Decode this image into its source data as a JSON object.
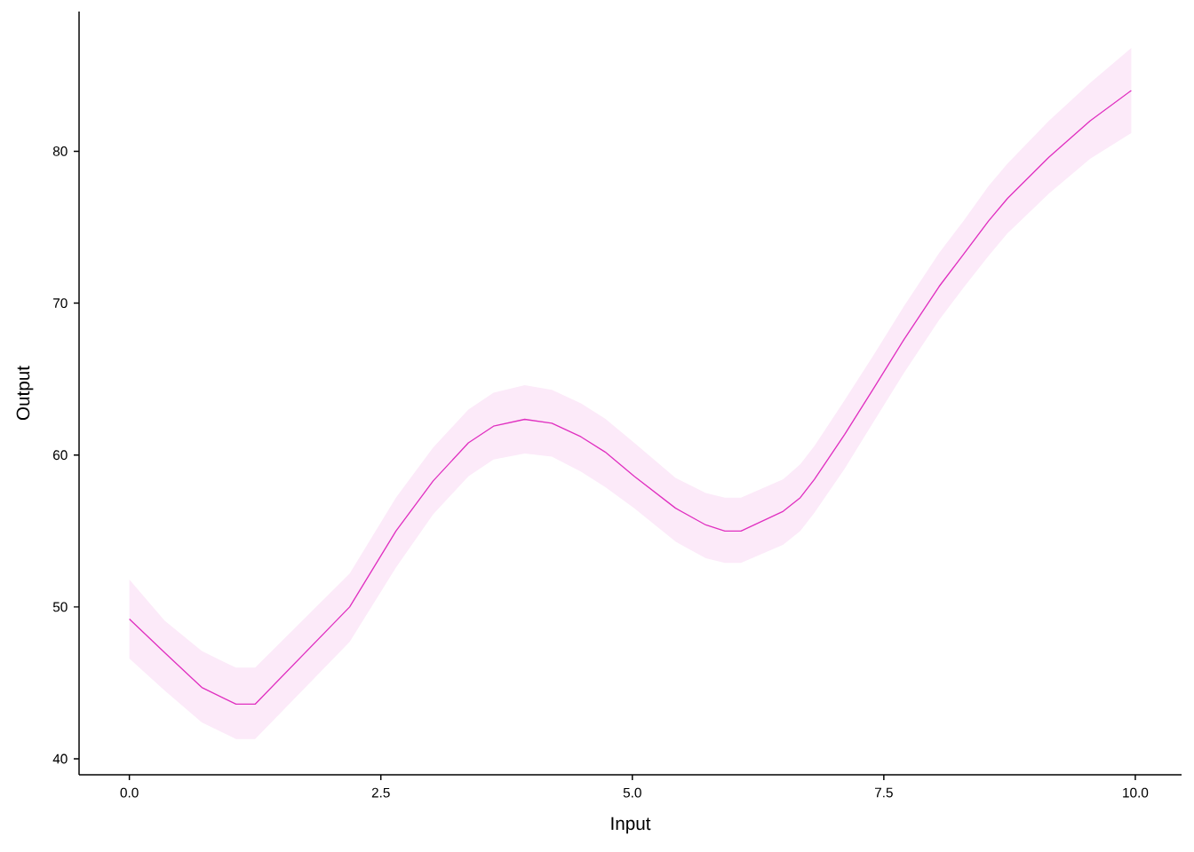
{
  "chart_data": {
    "type": "line",
    "xlabel": "Input",
    "ylabel": "Output",
    "x": [
      0,
      0.35,
      0.72,
      1.06,
      1.25,
      2.19,
      2.65,
      3.02,
      3.37,
      3.62,
      3.93,
      4.2,
      4.49,
      4.73,
      5.02,
      5.43,
      5.73,
      5.92,
      6.08,
      6.5,
      6.67,
      6.81,
      7.11,
      7.4,
      7.7,
      8.05,
      8.29,
      8.54,
      8.73,
      9.14,
      9.55,
      9.96
    ],
    "series": [
      {
        "color": "#e030c0",
        "values": [
          49.2,
          47.0,
          44.7,
          43.6,
          43.6,
          50.0,
          55.0,
          58.3,
          60.8,
          61.9,
          62.35,
          62.1,
          61.2,
          60.2,
          58.6,
          56.5,
          55.4,
          55.0,
          55.0,
          56.3,
          57.2,
          58.4,
          61.35,
          64.4,
          67.6,
          71.1,
          73.2,
          75.4,
          76.9,
          79.6,
          82.0,
          84.0
        ],
        "lower": [
          46.6,
          44.5,
          42.4,
          41.3,
          41.3,
          47.7,
          52.6,
          56.1,
          58.6,
          59.7,
          60.1,
          59.9,
          58.9,
          57.9,
          56.5,
          54.3,
          53.2,
          52.9,
          52.9,
          54.1,
          55.0,
          56.2,
          59.1,
          62.2,
          65.4,
          68.9,
          71.0,
          73.1,
          74.6,
          77.2,
          79.5,
          81.2
        ],
        "upper": [
          51.8,
          49.1,
          47.1,
          46.0,
          46.0,
          52.2,
          57.2,
          60.5,
          63.0,
          64.1,
          64.6,
          64.3,
          63.4,
          62.4,
          60.8,
          58.5,
          57.5,
          57.2,
          57.2,
          58.4,
          59.4,
          60.6,
          63.6,
          66.6,
          69.8,
          73.3,
          75.4,
          77.7,
          79.2,
          82.0,
          84.5,
          86.8
        ]
      }
    ],
    "xlim": [
      -0.5,
      10.46
    ],
    "ylim": [
      38.95,
      89.2
    ],
    "xticks": [
      {
        "value": 0,
        "label": "0.0"
      },
      2.5,
      {
        "value": 5,
        "label": "5.0"
      },
      7.5,
      {
        "value": 10,
        "label": "10.0"
      }
    ],
    "yticks": [
      40,
      50,
      60,
      70,
      80
    ],
    "marker": "none",
    "line_style": "solid"
  }
}
